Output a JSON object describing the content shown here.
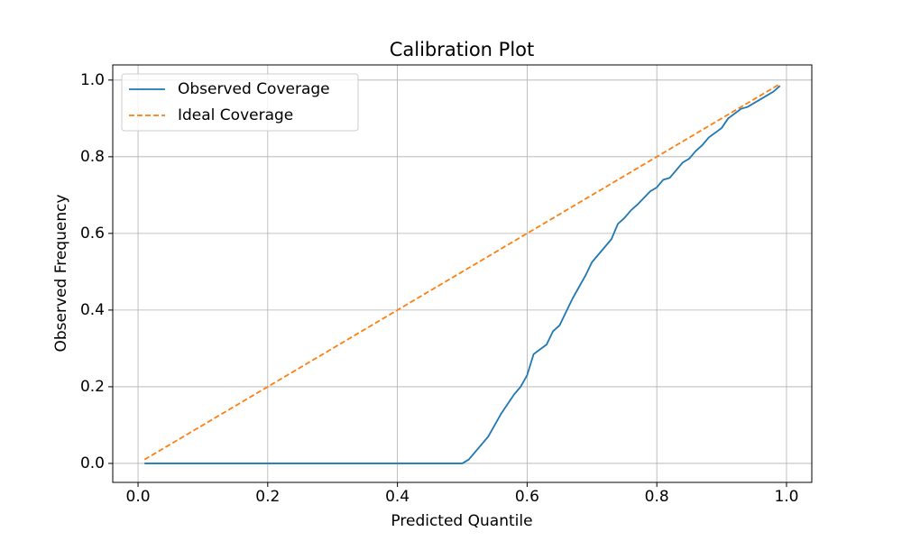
{
  "chart_data": {
    "type": "line",
    "title": "Calibration Plot",
    "x_label": "Predicted Quantile",
    "y_label": "Observed Frequency",
    "xlim": [
      -0.039,
      1.039
    ],
    "ylim": [
      -0.0495,
      1.0395
    ],
    "xticks": [
      {
        "value": 0,
        "label": "0.0"
      },
      0.2,
      0.4,
      0.6,
      0.8,
      {
        "value": 1,
        "label": "1.0"
      }
    ],
    "yticks": [
      {
        "value": 0,
        "label": "0.0"
      },
      0.2,
      0.4,
      0.6,
      0.8,
      {
        "value": 1,
        "label": "1.0"
      }
    ],
    "grid": true,
    "legend": "upper left",
    "series": [
      {
        "name": "Observed Coverage",
        "color": "#1f77b4",
        "dash": "solid",
        "x": [
          0.01,
          0.5,
          0.51,
          0.53,
          0.54,
          0.56,
          0.58,
          0.59,
          0.6,
          0.61,
          0.63,
          0.64,
          0.65,
          0.67,
          0.69,
          0.7,
          0.71,
          0.73,
          0.74,
          0.75,
          0.76,
          0.77,
          0.79,
          0.8,
          0.81,
          0.82,
          0.84,
          0.85,
          0.86,
          0.87,
          0.88,
          0.9,
          0.91,
          0.93,
          0.94,
          0.96,
          0.98,
          0.99
        ],
        "values": [
          0,
          0,
          0.01,
          0.05,
          0.07,
          0.13,
          0.18,
          0.2,
          0.23,
          0.285,
          0.31,
          0.345,
          0.36,
          0.43,
          0.49,
          0.525,
          0.545,
          0.585,
          0.625,
          0.64,
          0.66,
          0.675,
          0.71,
          0.72,
          0.74,
          0.745,
          0.785,
          0.795,
          0.815,
          0.83,
          0.85,
          0.875,
          0.9,
          0.925,
          0.93,
          0.95,
          0.97,
          0.985
        ]
      },
      {
        "name": "Ideal Coverage",
        "color": "#ff7f0e",
        "dash": "dashed",
        "x": [
          0.01,
          0.99
        ],
        "values": [
          0.01,
          0.99
        ]
      }
    ]
  }
}
